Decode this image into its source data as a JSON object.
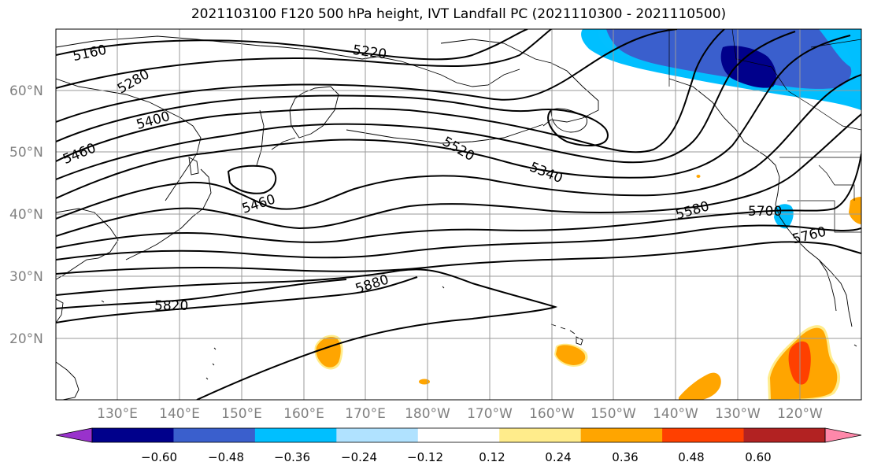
{
  "title": "2021103100 F120 500 hPa height, IVT Landfall PC (2021110300 - 2021110500)",
  "latitude_labels": [
    "60°N",
    "50°N",
    "40°N",
    "30°N",
    "20°N"
  ],
  "longitude_labels": [
    "130°E",
    "140°E",
    "150°E",
    "160°E",
    "170°E",
    "180°W",
    "170°W",
    "160°W",
    "150°W",
    "140°W",
    "130°W",
    "120°W"
  ],
  "contour_labels": [
    "5160",
    "5280",
    "5400",
    "5460",
    "5220",
    "5520",
    "5340",
    "5460",
    "5580",
    "5700",
    "5760",
    "5880",
    "5820"
  ],
  "colorbar": {
    "ticks": [
      "−0.60",
      "−0.48",
      "−0.36",
      "−0.24",
      "−0.12",
      "0.12",
      "0.24",
      "0.36",
      "0.48",
      "0.60"
    ],
    "colors": [
      "#9932cc",
      "#00008b",
      "#3a5fcd",
      "#00bfff",
      "#b0e2ff",
      "#ffffff",
      "#ffec8b",
      "#ffa500",
      "#ff4000",
      "#b22222",
      "#ff88aa"
    ]
  },
  "fill_colors": {
    "neg_light": "#b0e2ff",
    "neg_mid": "#00bfff",
    "neg_strong": "#3a5fcd",
    "neg_max": "#00008b",
    "pos_light": "#ffec8b",
    "pos_mid": "#ffa500",
    "pos_strong": "#ff4000"
  }
}
